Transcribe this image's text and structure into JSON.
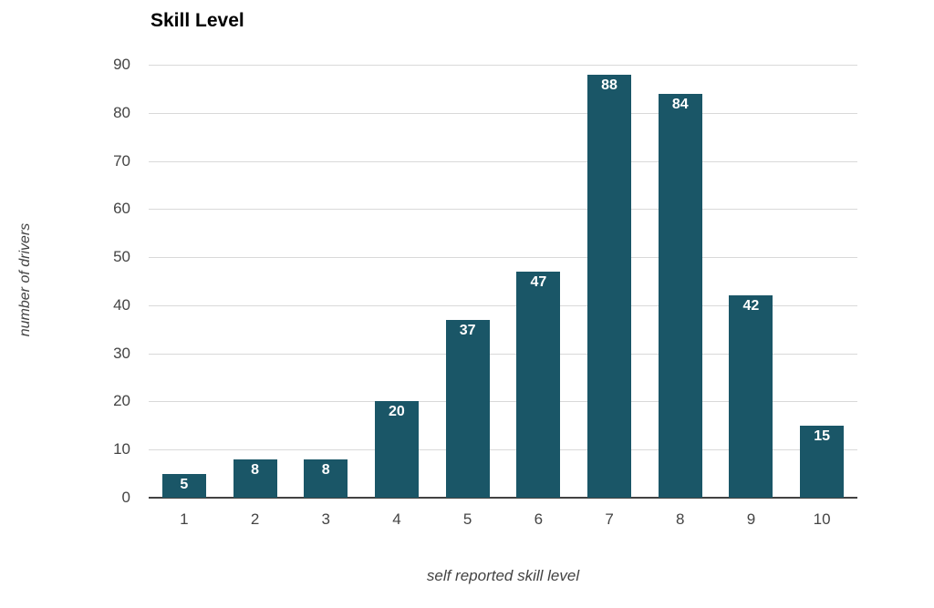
{
  "chart_data": {
    "type": "bar",
    "title": "Skill Level",
    "xlabel": "self reported skill level",
    "ylabel": "number of drivers",
    "categories": [
      "1",
      "2",
      "3",
      "4",
      "5",
      "6",
      "7",
      "8",
      "9",
      "10"
    ],
    "values": [
      5,
      8,
      8,
      20,
      37,
      47,
      88,
      84,
      42,
      15
    ],
    "ylim": [
      0,
      90
    ],
    "yticks": [
      0,
      10,
      20,
      30,
      40,
      50,
      60,
      70,
      80,
      90
    ],
    "grid": true,
    "legend_position": "none",
    "bar_labels_visible": true,
    "colors": {
      "bar": "#1a5667",
      "gridline": "#d9d9d9",
      "axis_line": "#424242",
      "tick_label": "#444444",
      "axis_title": "#434343",
      "title": "#000000",
      "value_label": "#ffffff"
    }
  }
}
